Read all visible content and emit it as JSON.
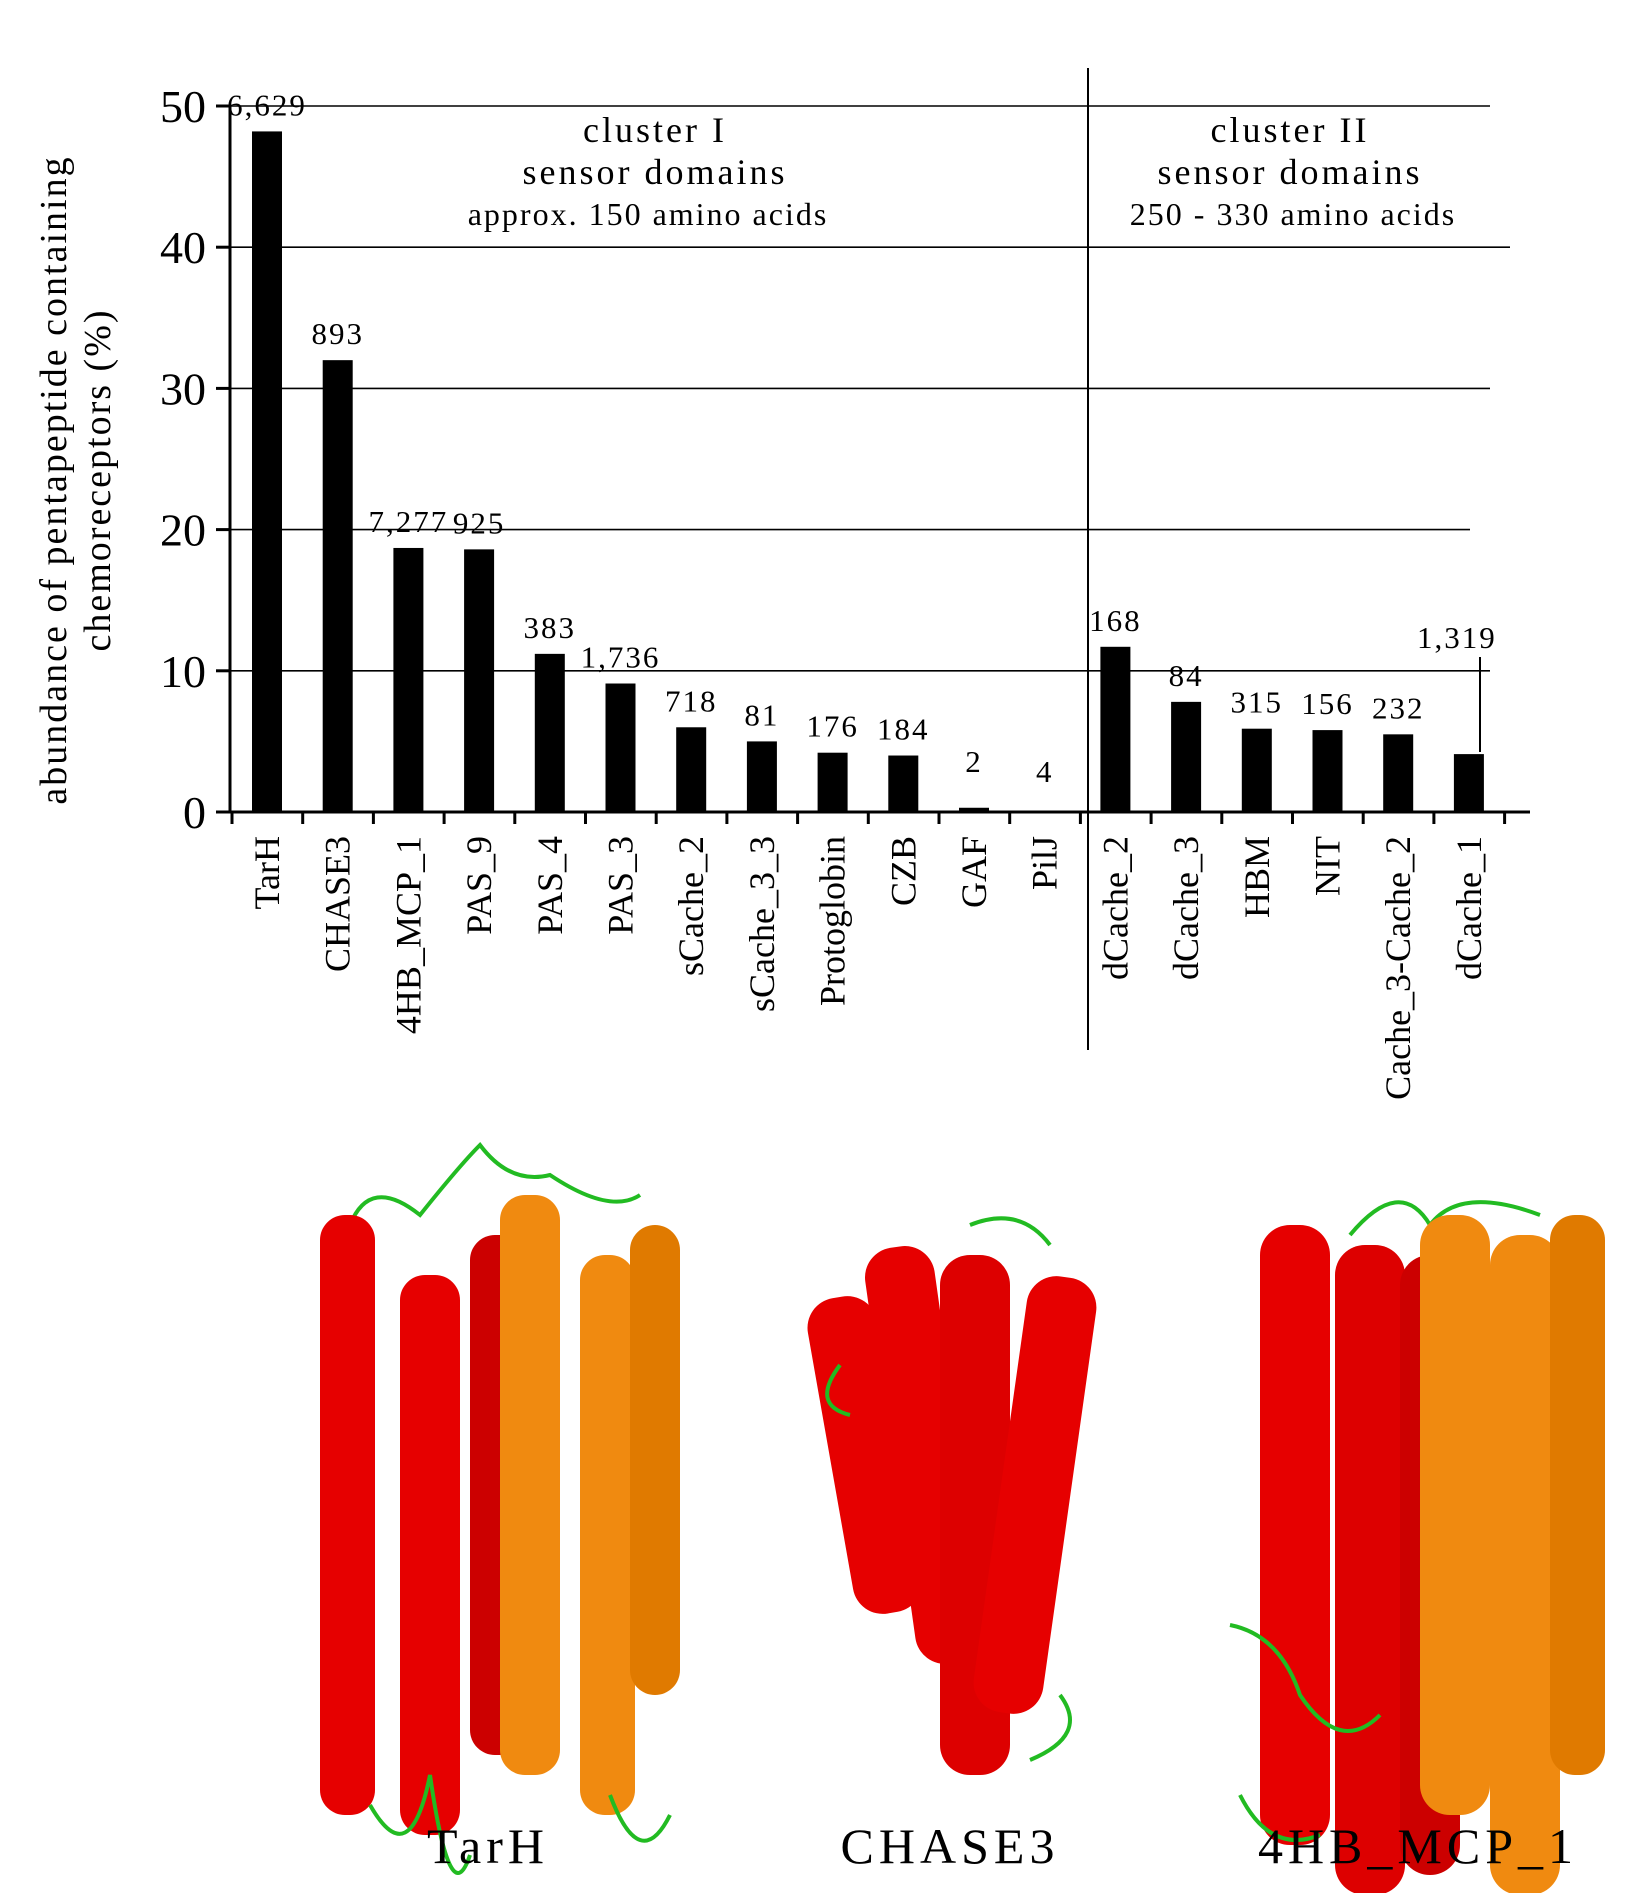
{
  "chart_data": {
    "type": "bar",
    "ylabel": "abundance of pentapeptide containing chemoreceptors (%)",
    "ylabel_lines": [
      "abundance of pentapeptide containing",
      "chemoreceptors (%)"
    ],
    "ylim": [
      0,
      50
    ],
    "yticks": [
      "0",
      "10",
      "20",
      "30",
      "40",
      "50"
    ],
    "grid": true,
    "categories": [
      "TarH",
      "CHASE3",
      "4HB_MCP_1",
      "PAS_9",
      "PAS_4",
      "PAS_3",
      "sCache_2",
      "sCache_3_3",
      "Protoglobin",
      "CZB",
      "GAF",
      "PilJ",
      "dCache_2",
      "dCache_3",
      "HBM",
      "NIT",
      "Cache_3-Cache_2",
      "dCache_1"
    ],
    "values": [
      48.2,
      32.0,
      18.7,
      18.6,
      11.2,
      9.1,
      6.0,
      5.0,
      4.2,
      4.0,
      0.3,
      0.1,
      11.7,
      7.8,
      5.9,
      5.8,
      5.5,
      4.1
    ],
    "data_labels": [
      "6,629",
      "893",
      "7,277",
      "925",
      "383",
      "1,736",
      "718",
      "81",
      "176",
      "184",
      "2",
      "4",
      "168",
      "84",
      "315",
      "156",
      "232",
      "1,319"
    ],
    "groups": [
      {
        "title": "cluster I",
        "subtitle": "sensor domains",
        "note": "approx. 150 amino acids"
      },
      {
        "title": "cluster II",
        "subtitle": "sensor domains",
        "note": "250 - 330 amino acids"
      }
    ]
  },
  "structures": {
    "labels": [
      "TarH",
      "CHASE3",
      "4HB_MCP_1"
    ],
    "colors": {
      "chain_a": "#e60000",
      "chain_b": "#f08a10",
      "loop": "#22bb22"
    }
  }
}
